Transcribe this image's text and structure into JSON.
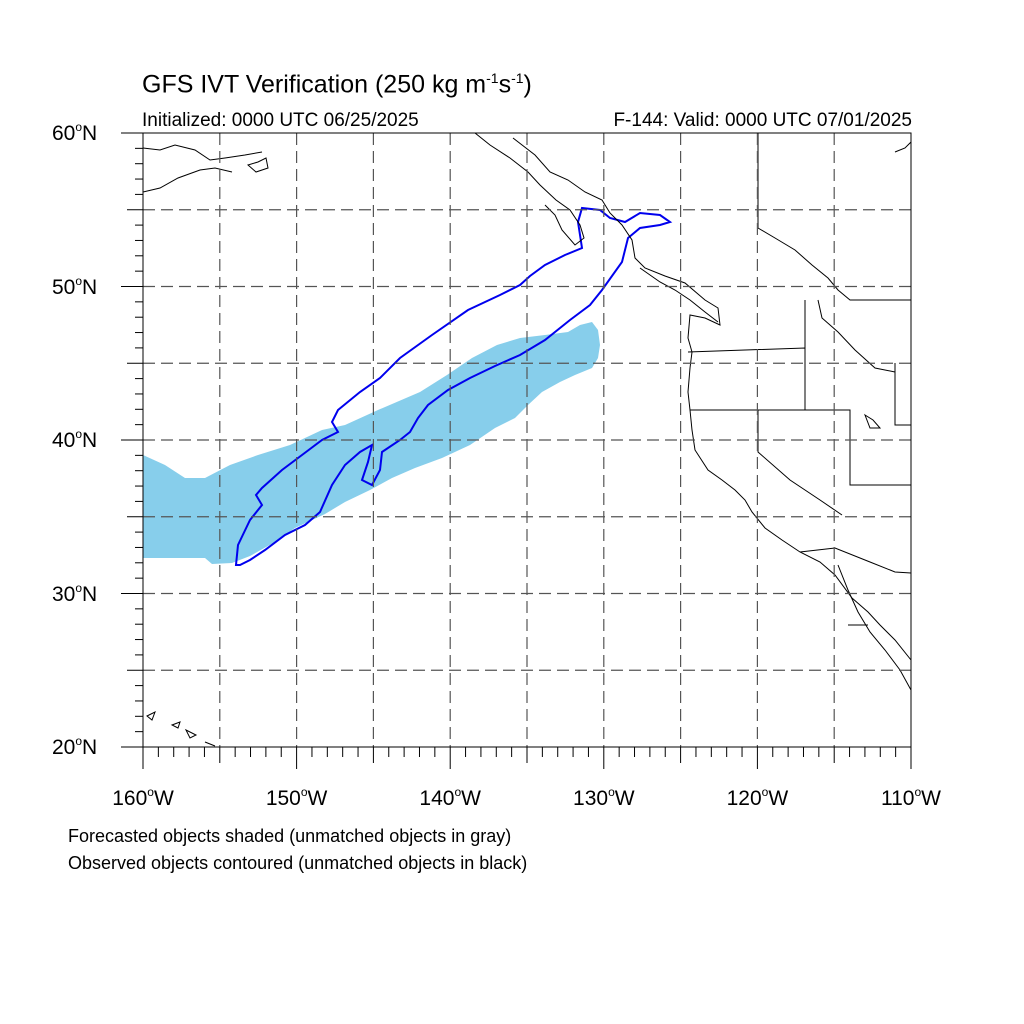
{
  "title": {
    "main": "GFS IVT Verification (250 kg m",
    "exp1": "-1",
    "mid": "s",
    "exp2": "-1",
    "end": ")"
  },
  "subtitle": {
    "left": "Initialized: 0000 UTC 06/25/2025",
    "right": "F-144: Valid: 0000 UTC 07/01/2025"
  },
  "map": {
    "lon_range": [
      -160,
      -110
    ],
    "lat_range": [
      20,
      60
    ],
    "projection": "cylindrical equidistant",
    "gridlines": "dashed every 5 degrees",
    "lat_ticks": [
      {
        "num": "60",
        "hem": "N"
      },
      {
        "num": "50",
        "hem": "N"
      },
      {
        "num": "40",
        "hem": "N"
      },
      {
        "num": "30",
        "hem": "N"
      },
      {
        "num": "20",
        "hem": "N"
      }
    ],
    "lon_ticks": [
      {
        "num": "160",
        "hem": "W"
      },
      {
        "num": "150",
        "hem": "W"
      },
      {
        "num": "140",
        "hem": "W"
      },
      {
        "num": "130",
        "hem": "W"
      },
      {
        "num": "120",
        "hem": "W"
      },
      {
        "num": "110",
        "hem": "W"
      }
    ],
    "forecast_object_color": "#87CEEB",
    "observed_object_color": "#0000EE",
    "coastline_color": "#000000"
  },
  "notes": {
    "line1": "Forecasted objects shaded (unmatched objects in gray)",
    "line2": "Observed objects contoured (unmatched objects in black)"
  }
}
